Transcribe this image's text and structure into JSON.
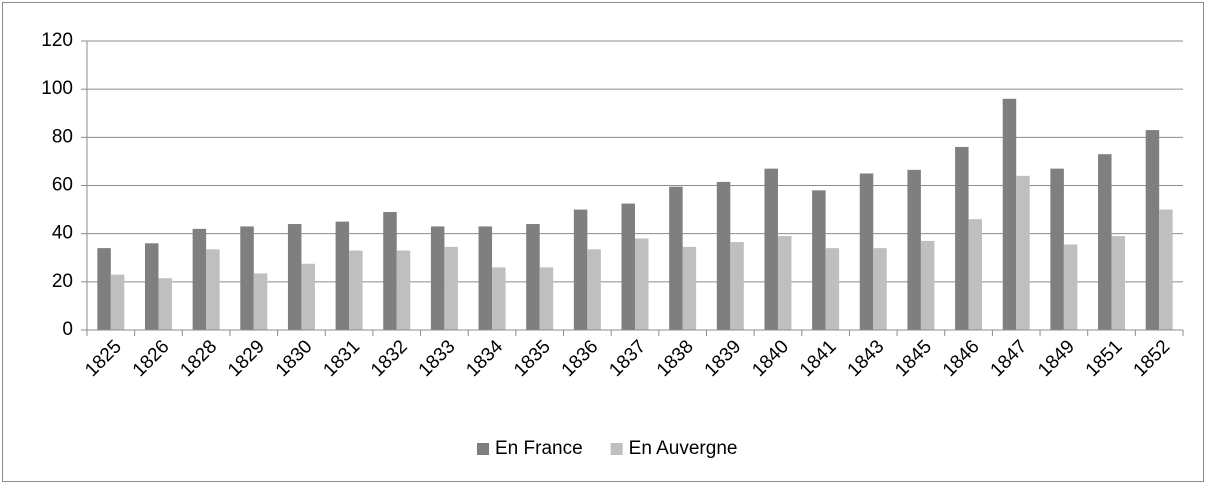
{
  "chart_data": {
    "type": "bar",
    "categories": [
      "1825",
      "1826",
      "1828",
      "1829",
      "1830",
      "1831",
      "1832",
      "1833",
      "1834",
      "1835",
      "1836",
      "1837",
      "1838",
      "1839",
      "1840",
      "1841",
      "1843",
      "1845",
      "1846",
      "1847",
      "1849",
      "1851",
      "1852"
    ],
    "series": [
      {
        "name": "En France",
        "color": "#7f7f7f",
        "values": [
          34,
          36,
          42,
          43,
          44,
          45,
          49,
          43,
          43,
          44,
          50,
          52.5,
          59.5,
          61.5,
          67,
          58,
          65,
          66.5,
          76,
          96,
          67,
          73,
          83
        ]
      },
      {
        "name": "En Auvergne",
        "color": "#bfbfbf",
        "values": [
          23,
          21.5,
          33.5,
          23.5,
          27.5,
          33,
          33,
          34.5,
          26,
          26,
          33.5,
          38,
          34.5,
          36.5,
          39,
          34,
          34,
          37,
          46,
          64,
          35.5,
          39,
          50
        ]
      }
    ],
    "ylim": [
      0,
      120
    ],
    "yticks": [
      0,
      20,
      40,
      60,
      80,
      100,
      120
    ],
    "grid": true,
    "legend": "bottom"
  }
}
